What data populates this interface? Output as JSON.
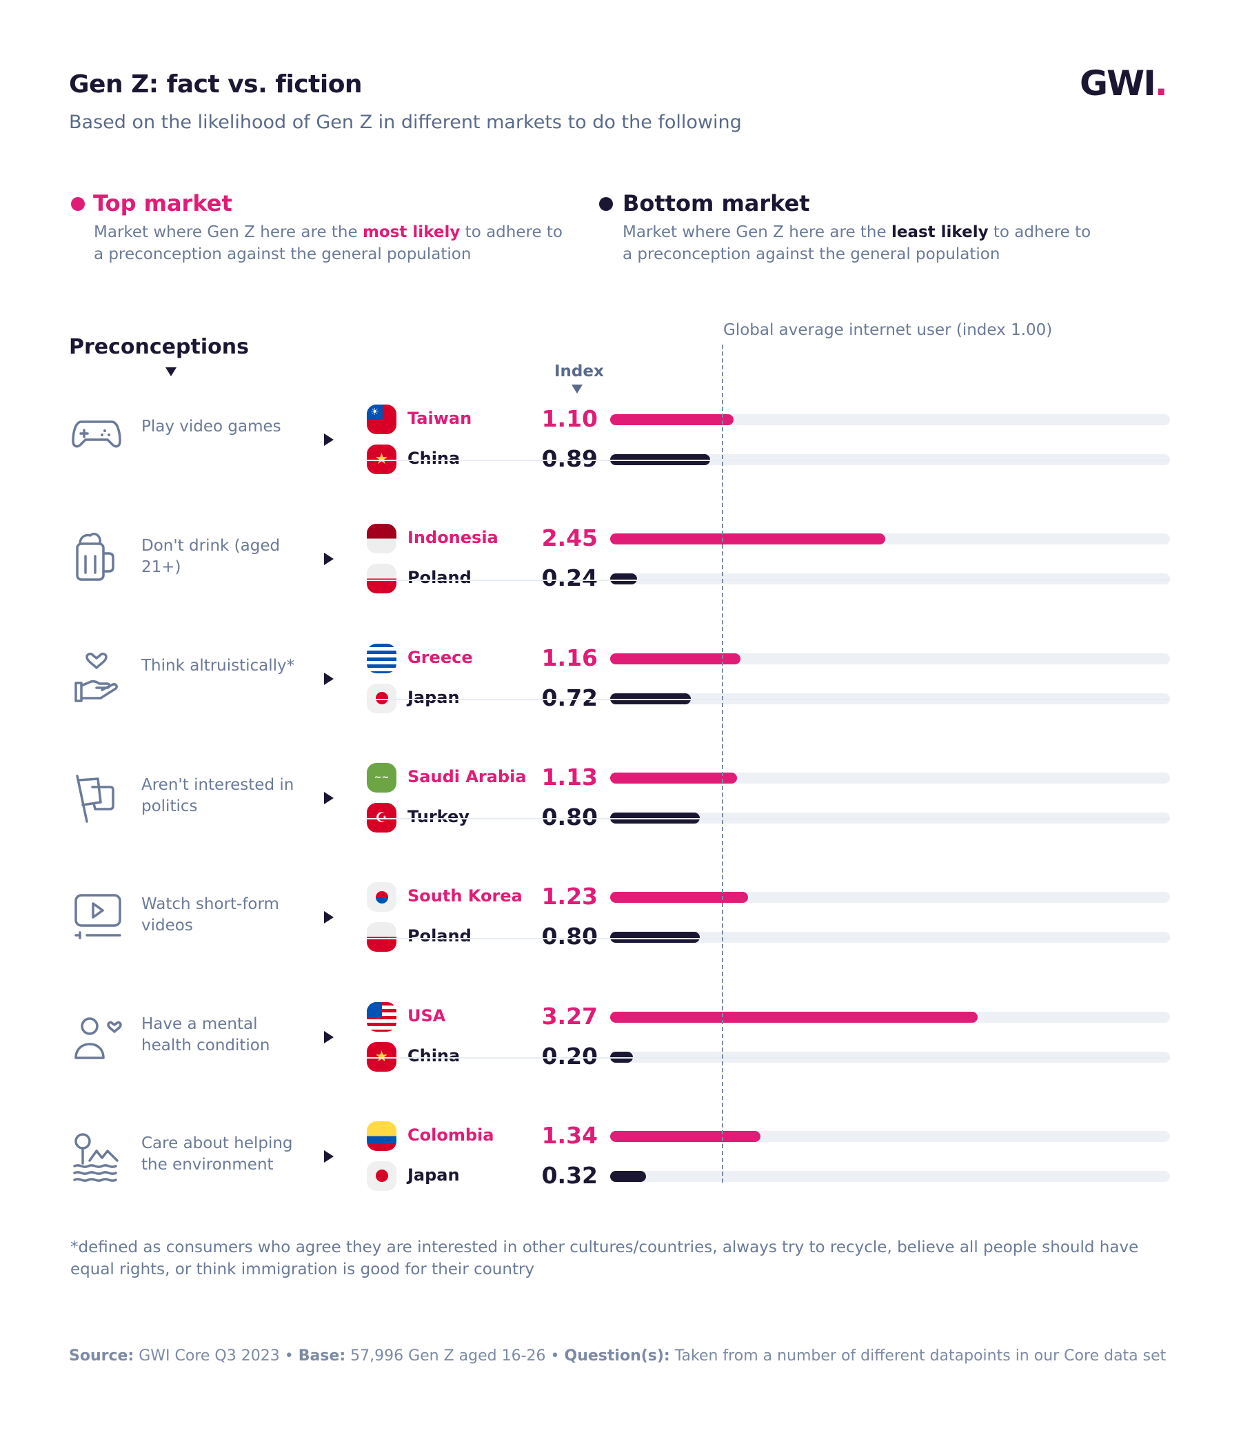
{
  "header": {
    "title": "Gen Z: fact vs. fiction",
    "subtitle": "Based on the likelihood of Gen Z in different markets to do the following",
    "logo": "GWI",
    "logo_dot": "."
  },
  "legend": {
    "top": {
      "label": "Top market",
      "desc_pre": "Market where Gen Z here are the ",
      "desc_emph": "most likely",
      "desc_post": " to adhere to a preconception against the general population"
    },
    "bottom": {
      "label": "Bottom market",
      "desc_pre": "Market where Gen Z here are the ",
      "desc_emph": "least likely",
      "desc_post": " to adhere to a preconception against the general population"
    }
  },
  "colors": {
    "top": "#e01c77",
    "bottom": "#1b1733",
    "track": "#edf0f5"
  },
  "chart_data": {
    "type": "bar",
    "title": "Gen Z: fact vs. fiction",
    "column_header": "Preconceptions",
    "value_header": "Index",
    "reference_line": {
      "value": 1.0,
      "label": "Global average internet user (index 1.00)"
    },
    "xlim": [
      0,
      5
    ],
    "rows": [
      {
        "preconception": "Play video games",
        "icon": "gamepad-icon",
        "top": {
          "country": "Taiwan",
          "value": 1.1
        },
        "bottom": {
          "country": "China",
          "value": 0.89
        }
      },
      {
        "preconception": "Don't drink (aged 21+)",
        "icon": "beer-mug-icon",
        "top": {
          "country": "Indonesia",
          "value": 2.45
        },
        "bottom": {
          "country": "Poland",
          "value": 0.24
        }
      },
      {
        "preconception": "Think altruistically*",
        "icon": "hand-heart-icon",
        "top": {
          "country": "Greece",
          "value": 1.16
        },
        "bottom": {
          "country": "Japan",
          "value": 0.72
        }
      },
      {
        "preconception": "Aren't interested in politics",
        "icon": "flag-icon",
        "top": {
          "country": "Saudi Arabia",
          "value": 1.13
        },
        "bottom": {
          "country": "Turkey",
          "value": 0.8
        }
      },
      {
        "preconception": "Watch short-form videos",
        "icon": "video-play-icon",
        "top": {
          "country": "South Korea",
          "value": 1.23
        },
        "bottom": {
          "country": "Poland",
          "value": 0.8
        }
      },
      {
        "preconception": "Have a mental health condition",
        "icon": "person-heart-icon",
        "top": {
          "country": "USA",
          "value": 3.27
        },
        "bottom": {
          "country": "China",
          "value": 0.2
        }
      },
      {
        "preconception": "Care about helping the environment",
        "icon": "tree-water-icon",
        "top": {
          "country": "Colombia",
          "value": 1.34
        },
        "bottom": {
          "country": "Japan",
          "value": 0.32
        }
      }
    ]
  },
  "footnote": "*defined as consumers who agree they are interested in other cultures/countries, always try to recycle, believe all people should have equal rights, or think immigration is good for their country",
  "source": {
    "source_label": "Source:",
    "source_text": " GWI Core Q3 2023 • ",
    "base_label": "Base:",
    "base_text": " 57,996 Gen Z aged 16-26 • ",
    "question_label": "Question(s):",
    "question_text": " Taken from a number of different datapoints in our Core data set"
  }
}
